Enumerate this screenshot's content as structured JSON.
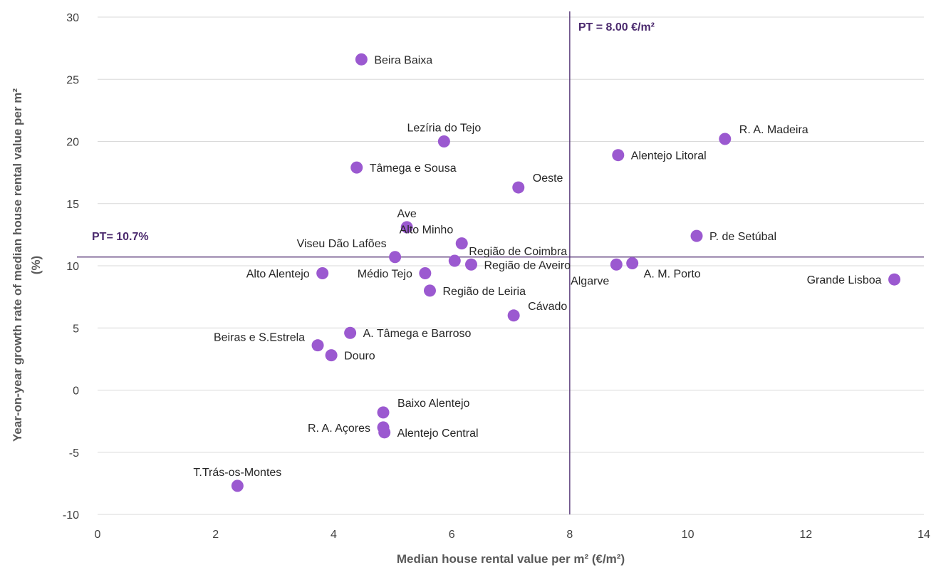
{
  "chart_data": {
    "type": "scatter",
    "xlabel": "Median house rental value per m² (€/m²)",
    "ylabel_line1": "Year-on-year growth rate of median house rental value per m²",
    "ylabel_line2": "(%)",
    "xlim": [
      0,
      14
    ],
    "ylim": [
      -10,
      30
    ],
    "x_ticks": [
      0,
      2,
      4,
      6,
      8,
      10,
      12,
      14
    ],
    "y_ticks": [
      -10,
      -5,
      0,
      5,
      10,
      15,
      20,
      25,
      30
    ],
    "grid": "horizontal",
    "colors": {
      "marker": "#9b59d0",
      "reference": "#4b2a6e",
      "grid": "#d9d9d9"
    },
    "reference_lines": {
      "vertical": {
        "x": 8.0,
        "label": "PT = 8.00 €/m²"
      },
      "horizontal": {
        "y": 10.7,
        "label": "PT= 10.7%"
      }
    },
    "points": [
      {
        "name": "Beira Baixa",
        "x": 4.47,
        "y": 26.6,
        "pos": "right"
      },
      {
        "name": "Lezíria do Tejo",
        "x": 5.87,
        "y": 20.0,
        "pos": "above"
      },
      {
        "name": "R. A. Madeira",
        "x": 10.63,
        "y": 20.2,
        "pos": "right-up"
      },
      {
        "name": "Alentejo Litoral",
        "x": 8.82,
        "y": 18.9,
        "pos": "right"
      },
      {
        "name": "Tâmega e Sousa",
        "x": 4.39,
        "y": 17.9,
        "pos": "right"
      },
      {
        "name": "Oeste",
        "x": 7.13,
        "y": 16.3,
        "pos": "right-up"
      },
      {
        "name": "Ave",
        "x": 5.24,
        "y": 13.1,
        "pos": "above"
      },
      {
        "name": "Alto Minho",
        "x": 6.17,
        "y": 11.8,
        "pos": "above-left"
      },
      {
        "name": "P. de Setúbal",
        "x": 10.15,
        "y": 12.4,
        "pos": "right"
      },
      {
        "name": "Viseu Dão Lafões",
        "x": 5.04,
        "y": 10.7,
        "pos": "above-left"
      },
      {
        "name": "Região de Coimbra",
        "x": 6.05,
        "y": 10.4,
        "pos": "right-up"
      },
      {
        "name": "Região de Aveiro",
        "x": 6.33,
        "y": 10.1,
        "pos": "right"
      },
      {
        "name": "Algarve",
        "x": 8.79,
        "y": 10.1,
        "pos": "below-left"
      },
      {
        "name": "A. M. Porto",
        "x": 9.06,
        "y": 10.2,
        "pos": "below-right"
      },
      {
        "name": "Grande Lisboa",
        "x": 13.5,
        "y": 8.9,
        "pos": "left"
      },
      {
        "name": "Alto Alentejo",
        "x": 3.81,
        "y": 9.4,
        "pos": "left"
      },
      {
        "name": "Médio Tejo",
        "x": 5.55,
        "y": 9.4,
        "pos": "left"
      },
      {
        "name": "Região de Leiria",
        "x": 5.63,
        "y": 8.0,
        "pos": "right"
      },
      {
        "name": "Cávado",
        "x": 7.05,
        "y": 6.0,
        "pos": "right-up"
      },
      {
        "name": "A. Tâmega e Barroso",
        "x": 4.28,
        "y": 4.6,
        "pos": "right"
      },
      {
        "name": "Beiras e S.Estrela",
        "x": 3.73,
        "y": 3.6,
        "pos": "left-up"
      },
      {
        "name": "Douro",
        "x": 3.96,
        "y": 2.8,
        "pos": "right"
      },
      {
        "name": "Baixo Alentejo",
        "x": 4.84,
        "y": -1.8,
        "pos": "right-up"
      },
      {
        "name": "R. A. Açores",
        "x": 4.84,
        "y": -3.0,
        "pos": "left"
      },
      {
        "name": "Alentejo Central",
        "x": 4.86,
        "y": -3.4,
        "pos": "right"
      },
      {
        "name": "T.Trás-os-Montes",
        "x": 2.37,
        "y": -7.7,
        "pos": "above"
      }
    ]
  }
}
